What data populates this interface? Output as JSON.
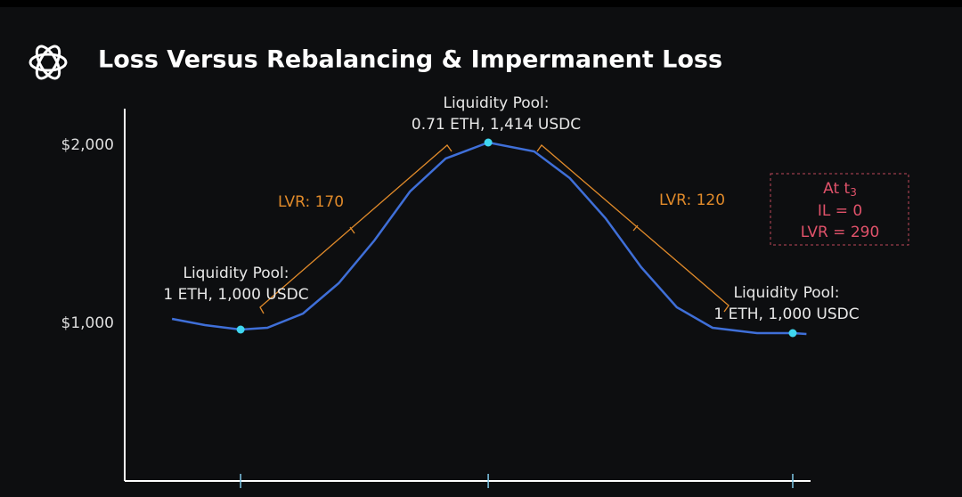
{
  "chart_data": {
    "type": "line",
    "title": "Loss Versus Rebalancing & Impermanent Loss",
    "xlim": [
      0,
      10
    ],
    "xticks": [
      1.69,
      5.3,
      9.74
    ],
    "ylim": [
      100,
      2200
    ],
    "yticks": [
      {
        "value": 1000,
        "label": "$1,000"
      },
      {
        "value": 2000,
        "label": "$2,000"
      }
    ],
    "series": [
      {
        "color": "#3f6fd8",
        "x": [
          0.69,
          1.17,
          1.69,
          2.08,
          2.6,
          3.12,
          3.64,
          4.16,
          4.68,
          5.3,
          5.97,
          6.49,
          7.01,
          7.53,
          8.05,
          8.57,
          9.22,
          9.74,
          9.94
        ],
        "values": [
          1025,
          990,
          965,
          975,
          1055,
          1225,
          1465,
          1740,
          1925,
          2015,
          1965,
          1815,
          1590,
          1315,
          1090,
          975,
          945,
          945,
          940
        ]
      },
      {
        "color": "#3fd6f0",
        "x": [
          1.69,
          5.3,
          9.74
        ],
        "values": [
          965,
          2015,
          945
        ]
      }
    ],
    "annotations": [
      [
        "Liquidity Pool:",
        "1 ETH, 1,000 USDC"
      ],
      [
        "Liquidity Pool:",
        "0.71 ETH, 1,414 USDC"
      ],
      [
        "Liquidity Pool:",
        "1 ETH, 1,000 USDC"
      ],
      "LVR: 170",
      "LVR: 120"
    ],
    "box_title": "At t",
    "box_title_sub": "3",
    "box_lines": [
      "IL = 0",
      "LVR = 290"
    ]
  }
}
